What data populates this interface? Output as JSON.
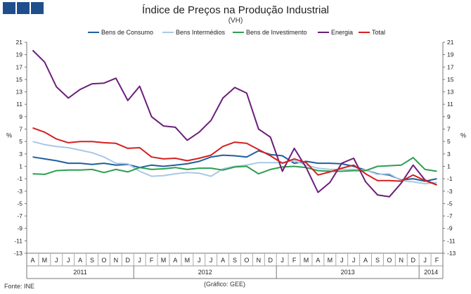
{
  "header": {
    "logo_icon": "ine-logo-icon"
  },
  "footer": {
    "source": "Fonte: INE",
    "credit": "(Gráfico: GEE)"
  },
  "chart_data": {
    "type": "line",
    "title": "Índice de Preços na Produção Industrial",
    "subtitle": "(VH)",
    "ylabel": "%",
    "ylabel_right": "%",
    "ylim": [
      -13,
      21
    ],
    "yticks": [
      21,
      19,
      17,
      15,
      13,
      11,
      9,
      7,
      5,
      3,
      1,
      -1,
      -3,
      -5,
      -7,
      -9,
      -11,
      -13
    ],
    "grid": false,
    "legend_position": "top",
    "month_labels": [
      "A",
      "M",
      "J",
      "J",
      "A",
      "S",
      "O",
      "N",
      "D",
      "J",
      "F",
      "M",
      "A",
      "M",
      "J",
      "J",
      "A",
      "S",
      "O",
      "N",
      "D",
      "J",
      "F",
      "M",
      "A",
      "M",
      "J",
      "J",
      "A",
      "S",
      "O",
      "N",
      "D",
      "J",
      "F"
    ],
    "year_groups": [
      {
        "label": "2011",
        "start": 0,
        "end": 8
      },
      {
        "label": "2012",
        "start": 9,
        "end": 20
      },
      {
        "label": "2013",
        "start": 21,
        "end": 32
      },
      {
        "label": "2014",
        "start": 33,
        "end": 34
      }
    ],
    "series": [
      {
        "name": "Bens de Consumo",
        "color": "#1f5f9e",
        "values": [
          2.5,
          2.2,
          1.9,
          1.5,
          1.5,
          1.3,
          1.5,
          1.2,
          1.3,
          0.8,
          1.2,
          1.0,
          1.2,
          1.4,
          1.8,
          2.5,
          2.8,
          2.7,
          2.5,
          3.5,
          2.9,
          2.7,
          1.5,
          1.8,
          1.5,
          1.5,
          1.4,
          1.0,
          0.4,
          -0.2,
          -0.4,
          -1.2,
          -1.0,
          -1.4,
          -1.0
        ]
      },
      {
        "name": "Bens Intermédios",
        "color": "#a8c8e6",
        "values": [
          5.0,
          4.5,
          4.2,
          4.0,
          3.6,
          3.2,
          2.5,
          1.5,
          1.4,
          0.2,
          -0.6,
          -0.5,
          -0.2,
          0.0,
          -0.1,
          -0.6,
          0.6,
          1.0,
          1.2,
          1.6,
          1.6,
          1.6,
          1.9,
          1.2,
          0.7,
          0.5,
          0.5,
          0.5,
          0.4,
          -0.3,
          -0.2,
          -1.3,
          -1.5,
          -1.8,
          -1.6
        ]
      },
      {
        "name": "Bens de Investimento",
        "color": "#2e9e50",
        "values": [
          -0.2,
          -0.3,
          0.3,
          0.4,
          0.4,
          0.5,
          0.0,
          0.5,
          0.1,
          0.8,
          0.5,
          0.6,
          0.8,
          0.5,
          0.7,
          0.7,
          0.4,
          0.9,
          1.0,
          -0.2,
          0.5,
          0.9,
          1.0,
          0.8,
          0.3,
          0.2,
          0.2,
          0.3,
          0.3,
          1.0,
          1.1,
          1.2,
          2.4,
          0.5,
          0.2
        ]
      },
      {
        "name": "Energia",
        "color": "#6b1f7a",
        "values": [
          19.7,
          17.8,
          13.8,
          12.0,
          13.4,
          14.3,
          14.4,
          15.2,
          11.6,
          13.9,
          9.0,
          7.5,
          7.3,
          5.2,
          6.5,
          8.4,
          12.0,
          13.7,
          12.8,
          7.0,
          5.7,
          0.2,
          3.9,
          0.8,
          -3.2,
          -1.6,
          1.5,
          2.3,
          -1.5,
          -3.6,
          -3.9,
          -1.7,
          1.2,
          -1.2,
          -2.0
        ]
      },
      {
        "name": "Total",
        "color": "#d42020",
        "values": [
          7.2,
          6.5,
          5.4,
          4.8,
          5.0,
          5.0,
          4.8,
          4.7,
          3.9,
          4.0,
          2.5,
          2.2,
          2.3,
          1.9,
          2.3,
          2.8,
          4.2,
          4.9,
          4.7,
          3.7,
          2.7,
          1.5,
          2.2,
          1.6,
          -0.4,
          0.1,
          0.7,
          1.2,
          -0.2,
          -1.3,
          -1.3,
          -1.4,
          -0.4,
          -1.3,
          -2.0
        ]
      }
    ]
  }
}
